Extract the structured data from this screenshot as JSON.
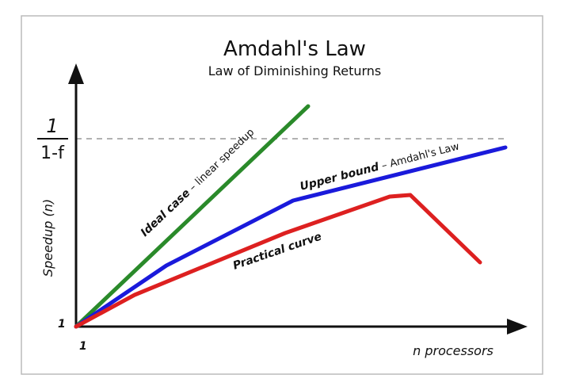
{
  "title": "Amdahl's Law",
  "subtitle": "Law of Diminishing Returns",
  "y_axis_label": "Speedup (n)",
  "x_axis_label": "n processors",
  "y_fraction": {
    "numerator": "1",
    "denominator": "1-f"
  },
  "origin_y_tick": "1",
  "origin_x_tick": "1",
  "curves": {
    "ideal": {
      "bold": "Ideal case",
      "rest": " – linear speedup",
      "color": "#2a8a2a"
    },
    "upper": {
      "bold": "Upper bound",
      "rest": " – Amdahl's Law",
      "color": "#1a1adb"
    },
    "practical": {
      "bold": "Practical curve",
      "color": "#dd2020"
    }
  },
  "colors": {
    "axis": "#111111",
    "asymptote": "#999999",
    "border": "#bbbbbb"
  }
}
